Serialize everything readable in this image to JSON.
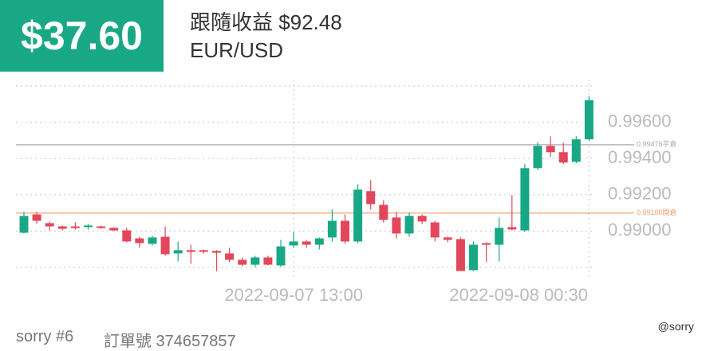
{
  "header": {
    "pnl": "$37.60",
    "follow": "跟隨收益 $92.48",
    "symbol": "EUR/USD"
  },
  "chart_data": {
    "type": "candlestick",
    "categories": [
      null,
      null,
      null,
      null,
      null,
      null,
      null,
      null,
      null,
      null,
      null,
      null,
      null,
      null,
      null,
      null,
      null,
      null,
      null,
      null,
      null,
      "2022-09-07 13:00",
      null,
      null,
      null,
      null,
      null,
      null,
      null,
      null,
      null,
      null,
      null,
      null,
      null,
      null,
      null,
      null,
      null,
      null,
      null,
      null,
      null,
      null,
      "2022-09-08 00:30"
    ],
    "open": [
      0.98991,
      0.99092,
      0.99044,
      0.99026,
      0.99026,
      0.99022,
      0.99026,
      0.99018,
      0.99004,
      0.9896,
      0.9893,
      0.98969,
      0.98877,
      0.98895,
      0.98895,
      0.98891,
      0.98877,
      0.98842,
      0.98815,
      0.98855,
      0.98811,
      0.98921,
      0.98943,
      0.98925,
      0.98965,
      0.99057,
      0.98943,
      0.9922,
      0.99145,
      0.99075,
      0.98987,
      0.99084,
      0.99048,
      0.98965,
      0.98956,
      0.98785,
      0.98934,
      0.98925,
      0.99022,
      0.99004,
      0.99347,
      0.9947,
      0.99435,
      0.99382,
      0.99506
    ],
    "high": [
      0.99106,
      0.99106,
      0.99053,
      0.99031,
      0.99048,
      0.9904,
      0.9903,
      0.99022,
      0.99018,
      0.98969,
      0.98974,
      0.99026,
      0.98943,
      0.98925,
      0.98899,
      0.98895,
      0.98908,
      0.98855,
      0.98864,
      0.98864,
      0.98952,
      0.98996,
      0.98952,
      0.98965,
      0.99119,
      0.99092,
      0.99259,
      0.99281,
      0.99171,
      0.99106,
      0.99101,
      0.99092,
      0.99057,
      0.98969,
      0.98965,
      0.98943,
      0.98938,
      0.99075,
      0.99198,
      0.99369,
      0.99488,
      0.99523,
      0.99488,
      0.99523,
      0.99743
    ],
    "low": [
      0.98987,
      0.9904,
      0.99004,
      0.99004,
      0.99009,
      0.99009,
      0.99013,
      0.99,
      0.98938,
      0.98908,
      0.98921,
      0.98864,
      0.98833,
      0.9882,
      0.98877,
      0.9878,
      0.98829,
      0.98807,
      0.98802,
      0.98811,
      0.98802,
      0.98908,
      0.98908,
      0.98899,
      0.98943,
      0.9893,
      0.98934,
      0.99119,
      0.99048,
      0.9896,
      0.98969,
      0.9904,
      0.98943,
      0.98938,
      0.9878,
      0.9878,
      0.98829,
      0.98833,
      0.99004,
      0.98996,
      0.99338,
      0.99409,
      0.99369,
      0.99374,
      0.99497
    ],
    "close": [
      0.99084,
      0.99057,
      0.99026,
      0.99013,
      0.99022,
      0.99031,
      0.99018,
      0.99004,
      0.98943,
      0.98934,
      0.98965,
      0.98873,
      0.98895,
      0.98886,
      0.98886,
      0.98881,
      0.98842,
      0.98815,
      0.98855,
      0.98815,
      0.98916,
      0.98943,
      0.98925,
      0.9896,
      0.99057,
      0.98943,
      0.99229,
      0.99149,
      0.99062,
      0.98987,
      0.99084,
      0.99053,
      0.98965,
      0.98952,
      0.9878,
      0.98925,
      0.98925,
      0.99018,
      0.99009,
      0.99347,
      0.9947,
      0.99435,
      0.99378,
      0.99506,
      0.99721
    ],
    "up_color": "#19a886",
    "down_color": "#e2475b",
    "ylim": [
      0.988,
      0.998
    ],
    "yticks": [
      {
        "value": 0.99,
        "label": "0.99000"
      },
      {
        "value": 0.992,
        "label": "0.99200"
      },
      {
        "value": 0.994,
        "label": "0.99400"
      },
      {
        "value": 0.996,
        "label": "0.99600"
      }
    ],
    "grid": true,
    "lines": [
      {
        "value": 0.99476,
        "label": "0.99476平倉",
        "color": "#aaaaaa"
      },
      {
        "value": 0.991,
        "label": "0.99100開倉",
        "color": "#f0a070"
      }
    ]
  },
  "footer": {
    "user": "sorry #6",
    "order": "訂單號 374657857",
    "handle": "@sorry"
  }
}
